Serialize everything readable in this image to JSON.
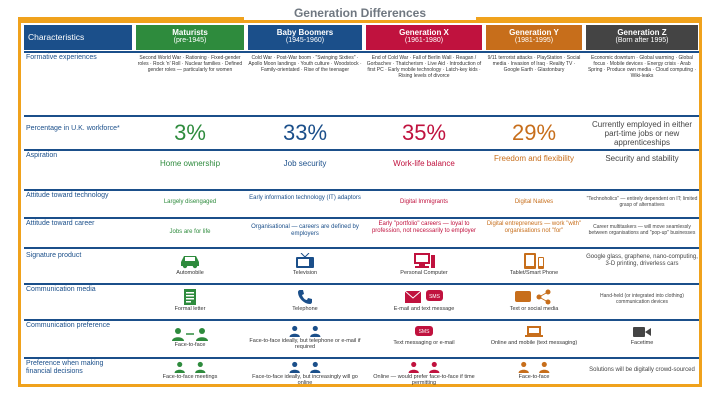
{
  "title": "Generation Differences",
  "colors": {
    "maturists": "#2e8b3d",
    "boomers": "#1b4f8a",
    "genx": "#c0123e",
    "geny": "#c76e1b",
    "genz": "#444444",
    "accent": "#f0a21c"
  },
  "header": {
    "label": "Characteristics",
    "gens": [
      {
        "name": "Maturists",
        "years": "(pre-1945)",
        "color": "#2e8b3d"
      },
      {
        "name": "Baby Boomers",
        "years": "(1945-1960)",
        "color": "#1b4f8a"
      },
      {
        "name": "Generation X",
        "years": "(1961-1980)",
        "color": "#c0123e"
      },
      {
        "name": "Generation Y",
        "years": "(1981-1995)",
        "color": "#c76e1b"
      },
      {
        "name": "Generation Z",
        "years": "(Born after 1995)",
        "color": "#444444"
      }
    ]
  },
  "rows": {
    "formative": {
      "label": "Formative experiences",
      "cells": [
        "Second World War · Rationing · Fixed-gender roles · Rock 'n' Roll · Nuclear families · Defined gender roles — particularly for women",
        "Cold War · Post-War boom · \"Swinging Sixties\" · Apollo Moon landings · Youth culture · Woodstock · Family-orientated · Rise of the teenager",
        "End of Cold War · Fall of Berlin Wall · Reagan / Gorbachev · Thatcherism · Live Aid · Introduction of first PC · Early mobile technology · Latch-key kids · Rising levels of divorce",
        "9/11 terrorist attacks · PlayStation · Social media · Invasion of Iraq · Reality TV · Google Earth · Glastonbury",
        "Economic downturn · Global warming · Global focus · Mobile devices · Energy crisis · Arab Spring · Produce own media · Cloud computing · Wiki-leaks"
      ]
    },
    "workforce": {
      "label": "Percentage in U.K. workforce*",
      "cells": [
        "3%",
        "33%",
        "35%",
        "29%",
        "Currently employed in either part-time jobs or new apprenticeships"
      ]
    },
    "aspiration": {
      "label": "Aspiration",
      "cells": [
        "Home ownership",
        "Job security",
        "Work-life balance",
        "Freedom and flexibility",
        "Security and stability"
      ]
    },
    "technology": {
      "label": "Attitude toward technology",
      "cells": [
        "Largely disengaged",
        "Early information technology (IT) adaptors",
        "Digital Immigrants",
        "Digital Natives",
        "\"Technoholics\" — entirely dependent on IT; limited grasp of alternatives"
      ]
    },
    "career": {
      "label": "Attitude toward career",
      "cells": [
        "Jobs are for life",
        "Organisational — careers are defined by employers",
        "Early \"portfolio\" careers — loyal to profession, not necessarily to employer",
        "Digital entrepreneurs — work \"with\" organisations not \"for\"",
        "Career multitaskers — will move seamlessly between organisations and \"pop-up\" businesses"
      ]
    },
    "product": {
      "label": "Signature product",
      "cells": [
        "Automobile",
        "Television",
        "Personal Computer",
        "Tablet/Smart Phone",
        "Google glass, graphene, nano-computing, 3-D printing, driverless cars"
      ]
    },
    "media": {
      "label": "Communication media",
      "cells": [
        "Formal letter",
        "Telephone",
        "E-mail and text message",
        "Text or social media",
        "Hand-held (or integrated into clothing) communication devices"
      ]
    },
    "preference": {
      "label": "Communication preference",
      "cells": [
        "Face-to-face",
        "Face-to-face ideally, but telephone or e-mail if required",
        "Text messaging or e-mail",
        "Online and mobile (text messaging)",
        "Facetime"
      ]
    },
    "financial": {
      "label": "Preference when making financial decisions",
      "cells": [
        "Face-to-face meetings",
        "Face-to-face ideally, but increasingly will go online",
        "Online — would prefer face-to-face if time permitting",
        "Face-to-face",
        "Solutions will be digitally crowd-sourced"
      ]
    }
  },
  "icons": {
    "product": [
      "car-icon",
      "tv-icon",
      "computer-icon",
      "tablet-phone-icon"
    ],
    "media": [
      "letter-icon",
      "telephone-icon",
      "email-icon",
      "social-icon"
    ]
  }
}
